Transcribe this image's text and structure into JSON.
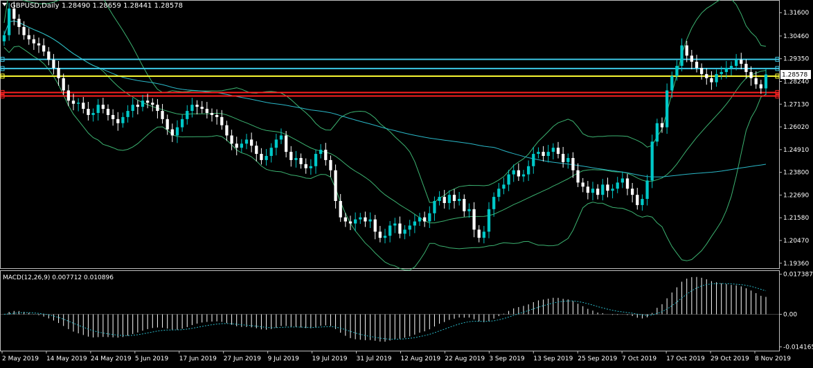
{
  "header": {
    "symbol_title": "GBPUSD,Daily",
    "ohlc": "1.28490 1.28659 1.28441 1.28578"
  },
  "macd": {
    "label": "MACD(12,26,9) 0.007712 0.010896",
    "ticks": [
      "0.017387",
      "0.00",
      "-0.014165"
    ]
  },
  "price_axis": {
    "ticks": [
      "1.31600",
      "1.30460",
      "1.29350",
      "1.28240",
      "1.27130",
      "1.26020",
      "1.24910",
      "1.23800",
      "1.22690",
      "1.21580",
      "1.20470",
      "1.19360"
    ],
    "current_price": "1.28578"
  },
  "time_axis": {
    "labels": [
      "2 May 2019",
      "14 May 2019",
      "24 May 2019",
      "5 Jun 2019",
      "17 Jun 2019",
      "27 Jun 2019",
      "9 Jul 2019",
      "19 Jul 2019",
      "31 Jul 2019",
      "12 Aug 2019",
      "22 Aug 2019",
      "3 Sep 2019",
      "13 Sep 2019",
      "25 Sep 2019",
      "7 Oct 2019",
      "17 Oct 2019",
      "29 Oct 2019",
      "8 Nov 2019"
    ]
  },
  "colors": {
    "background": "#000000",
    "bull": "#00c8c8",
    "bear": "#ffffff",
    "bands": "#3cb371",
    "ma": "#2ab8c8",
    "hline_cyan": "#3cc8e6",
    "hline_yellow": "#ffff33",
    "hline_red": "#ff2020",
    "text": "#ffffff"
  },
  "chart_data": {
    "type": "candlestick",
    "ylim": [
      1.1915,
      1.3215
    ],
    "macd_ylim": [
      -0.0155,
      0.0185
    ],
    "horizontal_lines": [
      {
        "price": 1.2932,
        "color": "cyan"
      },
      {
        "price": 1.2887,
        "color": "cyan"
      },
      {
        "price": 1.285,
        "color": "yellow"
      },
      {
        "price": 1.277,
        "color": "red"
      },
      {
        "price": 1.2753,
        "color": "red"
      }
    ],
    "close": [
      1.305,
      1.318,
      1.313,
      1.309,
      1.305,
      1.303,
      1.301,
      1.3,
      1.297,
      1.293,
      1.289,
      1.284,
      1.278,
      1.273,
      1.2715,
      1.272,
      1.269,
      1.266,
      1.267,
      1.271,
      1.269,
      1.266,
      1.264,
      1.262,
      1.265,
      1.268,
      1.271,
      1.27,
      1.273,
      1.272,
      1.271,
      1.268,
      1.264,
      1.259,
      1.256,
      1.26,
      1.264,
      1.268,
      1.271,
      1.27,
      1.269,
      1.267,
      1.266,
      1.265,
      1.261,
      1.256,
      1.252,
      1.25,
      1.252,
      1.254,
      1.251,
      1.247,
      1.244,
      1.246,
      1.25,
      1.254,
      1.256,
      1.248,
      1.244,
      1.245,
      1.242,
      1.24,
      1.241,
      1.247,
      1.249,
      1.244,
      1.239,
      1.224,
      1.216,
      1.214,
      1.213,
      1.215,
      1.216,
      1.214,
      1.215,
      1.209,
      1.206,
      1.207,
      1.212,
      1.213,
      1.208,
      1.21,
      1.212,
      1.214,
      1.216,
      1.214,
      1.218,
      1.224,
      1.226,
      1.223,
      1.227,
      1.224,
      1.225,
      1.219,
      1.22,
      1.21,
      1.206,
      1.209,
      1.22,
      1.226,
      1.23,
      1.232,
      1.237,
      1.239,
      1.236,
      1.237,
      1.241,
      1.247,
      1.248,
      1.246,
      1.248,
      1.25,
      1.247,
      1.243,
      1.245,
      1.239,
      1.233,
      1.231,
      1.228,
      1.23,
      1.227,
      1.232,
      1.229,
      1.23,
      1.233,
      1.235,
      1.23,
      1.227,
      1.222,
      1.225,
      1.234,
      1.253,
      1.262,
      1.26,
      1.278,
      1.285,
      1.29,
      1.3,
      1.295,
      1.292,
      1.289,
      1.286,
      1.284,
      1.282,
      1.286,
      1.287,
      1.289,
      1.29,
      1.293,
      1.291,
      1.287,
      1.284,
      1.281,
      1.279,
      1.2858
    ]
  }
}
